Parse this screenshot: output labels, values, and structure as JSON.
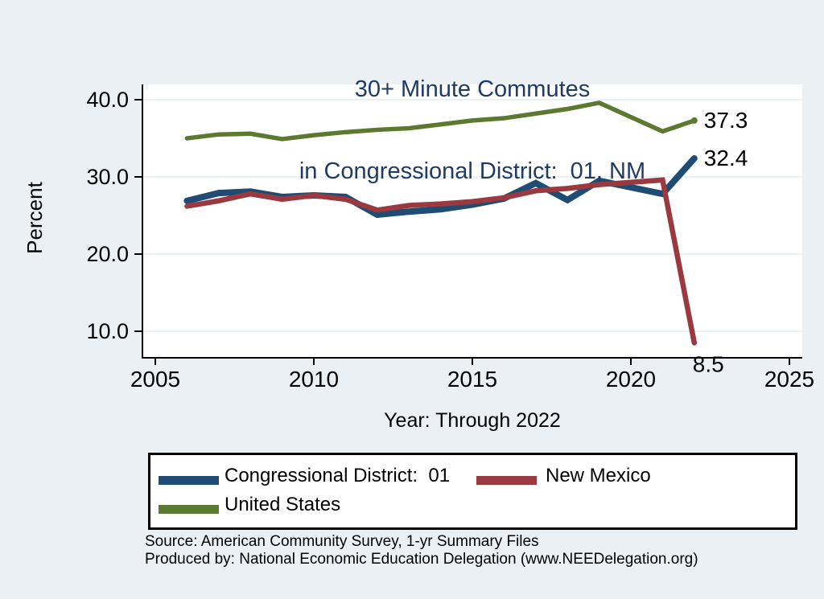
{
  "title": {
    "line1": "30+ Minute Commutes",
    "line2": "in Congressional District:  01, NM"
  },
  "axes": {
    "y_label": "Percent",
    "x_label": "Year: Through 2022",
    "y_ticks": [
      "40.0",
      "30.0",
      "20.0",
      "10.0"
    ],
    "x_ticks": [
      "2005",
      "2010",
      "2015",
      "2020",
      "2025"
    ]
  },
  "colors": {
    "background": "#EAF0F4",
    "plot_background": "#FFFFFF",
    "gridline": "#E4EDF2",
    "axis": "#000000",
    "title_text": "#1F3B63",
    "navy": "#1E4C74",
    "maroon": "#9A3A40",
    "forest_green": "#5B7A2F"
  },
  "legend": {
    "items": [
      {
        "label": "Congressional District:  01",
        "color": "#1E4C74"
      },
      {
        "label": "New Mexico",
        "color": "#9A3A40"
      },
      {
        "label": "United States",
        "color": "#5B7A2F"
      }
    ]
  },
  "footer": {
    "line1": "Source: American Community Survey, 1-yr Summary Files",
    "line2": "Produced by: National Economic Education Delegation (www.NEEDelegation.org)"
  },
  "chart_data": {
    "type": "line",
    "title": "30+ Minute Commutes in Congressional District: 01, NM",
    "xlabel": "Year: Through 2022",
    "ylabel": "Percent",
    "x": [
      2006,
      2007,
      2008,
      2009,
      2010,
      2011,
      2012,
      2013,
      2014,
      2015,
      2016,
      2017,
      2018,
      2019,
      2020,
      2021,
      2022
    ],
    "series": [
      {
        "name": "Congressional District:  01",
        "color": "#1E4C74",
        "values": [
          26.9,
          27.9,
          28.1,
          27.4,
          27.6,
          27.4,
          25.1,
          25.5,
          25.8,
          26.4,
          27.2,
          29.2,
          27.0,
          29.5,
          null,
          27.8,
          32.4
        ],
        "end_label": "32.4",
        "end_label_pos": "right",
        "end_marker": false
      },
      {
        "name": "New Mexico",
        "color": "#9A3A40",
        "values": [
          26.2,
          26.9,
          27.8,
          27.1,
          27.6,
          27.1,
          25.7,
          26.3,
          26.5,
          26.8,
          27.3,
          28.2,
          28.5,
          29.0,
          null,
          29.6,
          8.5
        ],
        "end_label": "8.5",
        "end_label_pos": "below",
        "end_marker": false
      },
      {
        "name": "United States",
        "color": "#5B7A2F",
        "values": [
          35.0,
          35.5,
          35.6,
          34.9,
          35.4,
          35.8,
          36.1,
          36.3,
          36.8,
          37.3,
          37.6,
          38.2,
          38.8,
          39.6,
          null,
          35.9,
          37.3
        ],
        "end_label": "37.3",
        "end_label_pos": "right",
        "end_marker": true
      }
    ],
    "y_tick_values": [
      40,
      30,
      20,
      10
    ],
    "x_tick_values": [
      2005,
      2010,
      2015,
      2020,
      2025
    ],
    "xlim": [
      2004.6,
      2025.4
    ],
    "ylim": [
      6.5,
      42
    ],
    "grid": true,
    "missing_years": [
      2020
    ],
    "legend_position": "bottom"
  }
}
